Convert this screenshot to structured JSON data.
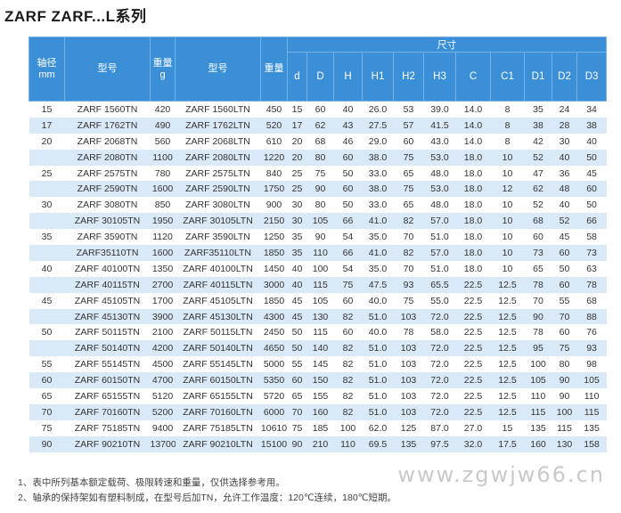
{
  "title": "ZARF ZARF...L系列",
  "table": {
    "headers": {
      "shaft_dia": "轴径",
      "shaft_unit": "mm",
      "model1": "型号",
      "weight1": "重量",
      "weight_unit": "g",
      "model2": "型号",
      "weight2": "重量",
      "dims_group": "尺寸",
      "dims": [
        "d",
        "D",
        "H",
        "H1",
        "H2",
        "H3",
        "C",
        "C1",
        "D1",
        "D2",
        "D3"
      ]
    },
    "rows": [
      [
        "15",
        "ZARF 1560TN",
        "420",
        "ZARF 1560LTN",
        "450",
        "15",
        "60",
        "40",
        "26.0",
        "53",
        "39.0",
        "14.0",
        "8",
        "35",
        "24",
        "34"
      ],
      [
        "17",
        "ZARF 1762TN",
        "490",
        "ZARF 1762LTN",
        "520",
        "17",
        "62",
        "43",
        "27.5",
        "57",
        "41.5",
        "14.0",
        "8",
        "38",
        "28",
        "38"
      ],
      [
        "20",
        "ZARF 2068TN",
        "560",
        "ZARF 2068LTN",
        "610",
        "20",
        "68",
        "46",
        "29.0",
        "60",
        "43.0",
        "14.0",
        "8",
        "42",
        "30",
        "40"
      ],
      [
        "",
        "ZARF 2080TN",
        "1100",
        "ZARF 2080LTN",
        "1220",
        "20",
        "80",
        "60",
        "38.0",
        "75",
        "53.0",
        "18.0",
        "10",
        "52",
        "40",
        "50"
      ],
      [
        "25",
        "ZARF 2575TN",
        "780",
        "ZARF 2575LTN",
        "840",
        "25",
        "75",
        "50",
        "33.0",
        "65",
        "48.0",
        "18.0",
        "10",
        "47",
        "36",
        "45"
      ],
      [
        "",
        "ZARF 2590TN",
        "1600",
        "ZARF 2590LTN",
        "1750",
        "25",
        "90",
        "60",
        "38.0",
        "75",
        "53.0",
        "18.0",
        "12",
        "62",
        "48",
        "60"
      ],
      [
        "30",
        "ZARF 3080TN",
        "850",
        "ZARF 3080LTN",
        "900",
        "30",
        "80",
        "50",
        "33.0",
        "65",
        "48.0",
        "18.0",
        "10",
        "52",
        "40",
        "50"
      ],
      [
        "",
        "ZARF 30105TN",
        "1950",
        "ZARF 30105LTN",
        "2150",
        "30",
        "105",
        "66",
        "41.0",
        "82",
        "57.0",
        "18.0",
        "10",
        "68",
        "52",
        "66"
      ],
      [
        "35",
        "ZARF 3590TN",
        "1120",
        "ZARF 3590LTN",
        "1250",
        "35",
        "90",
        "54",
        "35.0",
        "70",
        "51.0",
        "18.0",
        "10",
        "60",
        "45",
        "58"
      ],
      [
        "",
        "ZARF35110TN",
        "1600",
        "ZARF35110LTN",
        "1850",
        "35",
        "110",
        "66",
        "41.0",
        "82",
        "57.0",
        "18.0",
        "10",
        "73",
        "60",
        "73"
      ],
      [
        "40",
        "ZARF 40100TN",
        "1350",
        "ZARF 40100LTN",
        "1450",
        "40",
        "100",
        "54",
        "35.0",
        "70",
        "51.0",
        "18.0",
        "10",
        "65",
        "50",
        "63"
      ],
      [
        "",
        "ZARF 40115TN",
        "2700",
        "ZARF 40115LTN",
        "3000",
        "40",
        "115",
        "75",
        "47.5",
        "93",
        "65.5",
        "22.5",
        "12.5",
        "78",
        "60",
        "78"
      ],
      [
        "45",
        "ZARF 45105TN",
        "1700",
        "ZARF 45105LTN",
        "1850",
        "45",
        "105",
        "60",
        "40.0",
        "75",
        "55.0",
        "22.5",
        "12.5",
        "70",
        "55",
        "68"
      ],
      [
        "",
        "ZARF 45130TN",
        "3900",
        "ZARF 45130LTN",
        "4300",
        "45",
        "130",
        "82",
        "51.0",
        "103",
        "72.0",
        "22.5",
        "12.5",
        "90",
        "70",
        "88"
      ],
      [
        "50",
        "ZARF 50115TN",
        "2100",
        "ZARF 50115LTN",
        "2450",
        "50",
        "115",
        "60",
        "40.0",
        "78",
        "58.0",
        "22.5",
        "12.5",
        "78",
        "60",
        "76"
      ],
      [
        "",
        "ZARF 50140TN",
        "4200",
        "ZARF 50140LTN",
        "4650",
        "50",
        "140",
        "82",
        "51.0",
        "103",
        "72.0",
        "22.5",
        "12.5",
        "95",
        "75",
        "93"
      ],
      [
        "55",
        "ZARF 55145TN",
        "4500",
        "ZARF 55145LTN",
        "5000",
        "55",
        "145",
        "82",
        "51.0",
        "103",
        "72.0",
        "22.5",
        "12.5",
        "100",
        "80",
        "98"
      ],
      [
        "60",
        "ZARF 60150TN",
        "4700",
        "ZARF 60150LTN",
        "5350",
        "60",
        "150",
        "82",
        "51.0",
        "103",
        "72.0",
        "22.5",
        "12.5",
        "105",
        "90",
        "105"
      ],
      [
        "65",
        "ZARF 65155TN",
        "5120",
        "ZARF 65155LTN",
        "5720",
        "65",
        "155",
        "82",
        "51.0",
        "103",
        "72.0",
        "22.5",
        "12.5",
        "110",
        "90",
        "110"
      ],
      [
        "70",
        "ZARF 70160TN",
        "5200",
        "ZARF 70160LTN",
        "6000",
        "70",
        "160",
        "82",
        "51.0",
        "103",
        "72.0",
        "22.5",
        "12.5",
        "115",
        "100",
        "115"
      ],
      [
        "75",
        "ZARF 75185TN",
        "9400",
        "ZARF 75185LTN",
        "10610",
        "75",
        "185",
        "100",
        "62.0",
        "125",
        "87.0",
        "27.0",
        "15",
        "135",
        "115",
        "135"
      ],
      [
        "90",
        "ZARF 90210TN",
        "13700",
        "ZARF 90210LTN",
        "15100",
        "90",
        "210",
        "110",
        "69.5",
        "135",
        "97.5",
        "32.0",
        "17.5",
        "160",
        "130",
        "158"
      ]
    ]
  },
  "notes": [
    "1、表中所列基本额定载荷、极限转速和重量，仅供选择参考用。",
    "2、轴承的保持架如有塑料制成，在型号后加TN，允许工作温度：120℃连续，180℃短期。"
  ],
  "watermark": "www.zgwjw66.cn"
}
